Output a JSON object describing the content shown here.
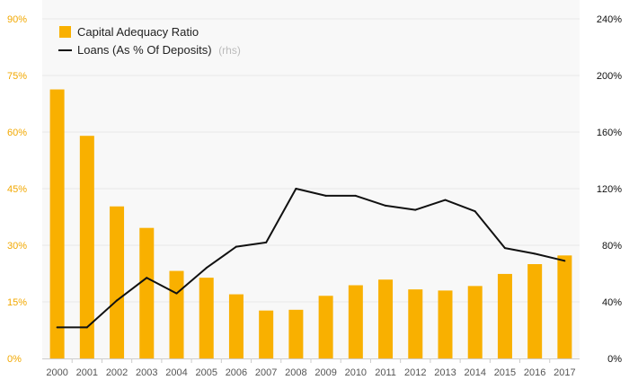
{
  "colors": {
    "bar": "#f9b000",
    "line": "#111111",
    "left_axis": "#f2a800",
    "right_axis": "#111111",
    "grid": "#e8e8e8",
    "plot_background": "#f8f8f8"
  },
  "chart_data": {
    "type": "bar",
    "categories": [
      "2000",
      "2001",
      "2002",
      "2003",
      "2004",
      "2005",
      "2006",
      "2007",
      "2008",
      "2009",
      "2010",
      "2011",
      "2012",
      "2013",
      "2014",
      "2015",
      "2016",
      "2017"
    ],
    "series": [
      {
        "name": "Capital Adequacy Ratio",
        "type": "bar",
        "axis": "left",
        "values": [
          71.3,
          59.0,
          40.3,
          34.6,
          23.2,
          21.4,
          17.0,
          12.7,
          12.9,
          16.6,
          19.4,
          20.9,
          18.3,
          18.0,
          19.2,
          22.4,
          25.0,
          27.3
        ]
      },
      {
        "name": "Loans (As % Of Deposits)",
        "name_note": "(rhs)",
        "type": "line",
        "axis": "right",
        "values": [
          22,
          22,
          41,
          57,
          46,
          64,
          79,
          82,
          120,
          115,
          115,
          108,
          105,
          112,
          104,
          78,
          74,
          69
        ]
      }
    ],
    "left_axis": {
      "min": 0,
      "max": 90,
      "ticks": [
        "0%",
        "15%",
        "30%",
        "45%",
        "60%",
        "75%",
        "90%"
      ]
    },
    "right_axis": {
      "min": 0,
      "max": 240,
      "ticks": [
        "0%",
        "40%",
        "80%",
        "120%",
        "160%",
        "200%",
        "240%"
      ]
    },
    "grid": true,
    "legend_position": "top-left"
  }
}
